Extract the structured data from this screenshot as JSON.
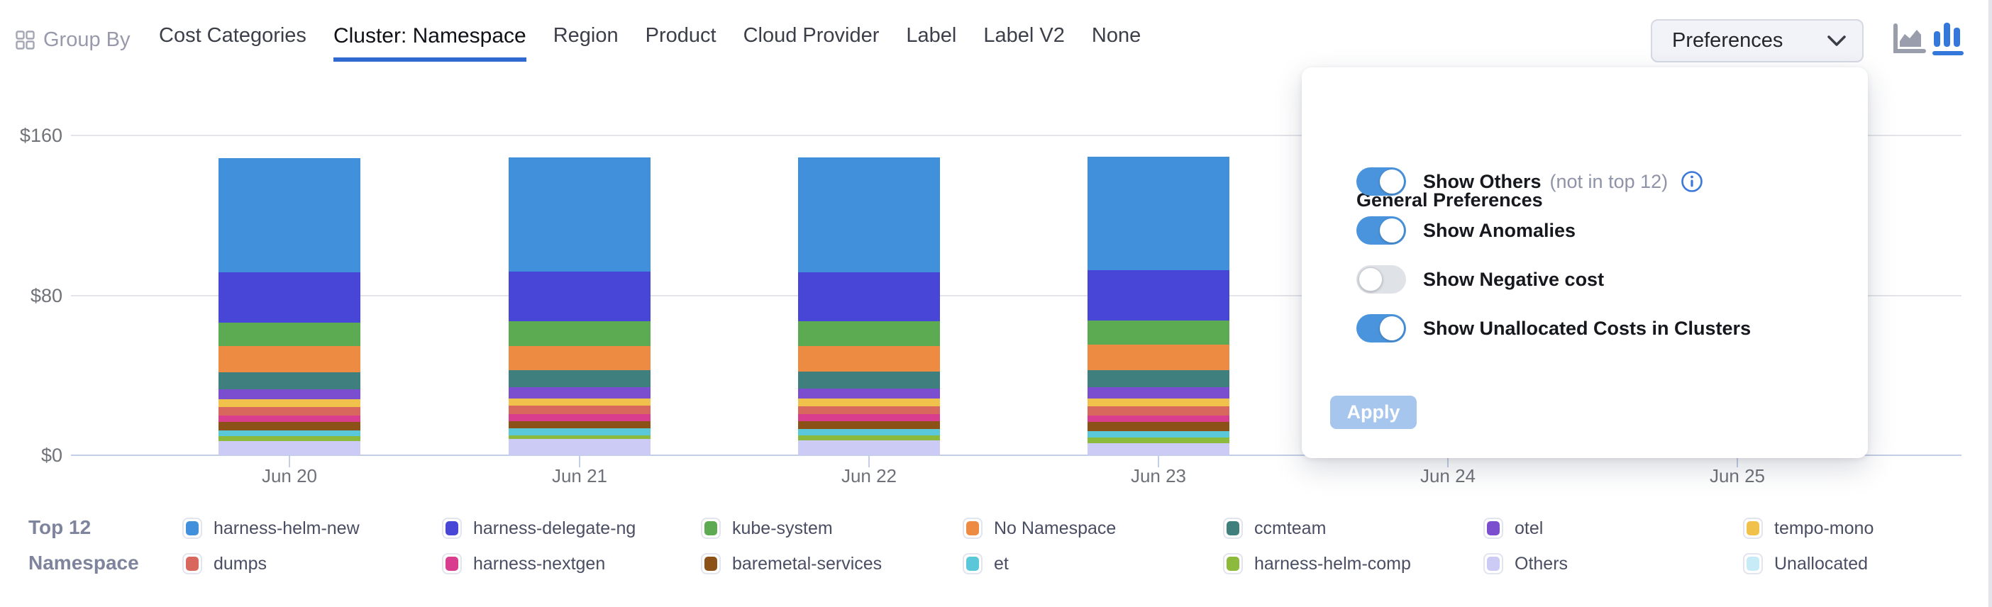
{
  "colors": {
    "accent": "#3069d0",
    "toggle_on": "#4a94dd",
    "toggle_off": "#dfe2e7",
    "apply_bg": "#a6c6ee",
    "info": "#3b78dc",
    "axis_line": "#c3cfe6",
    "gridline": "#e4e4e9",
    "icon_gray": "#9a9dac",
    "icon_blue": "#3578db"
  },
  "header": {
    "group_by_label": "Group By",
    "group_by_icon": "grid-icon",
    "tabs": [
      {
        "label": "Cost Categories",
        "active": false
      },
      {
        "label": "Cluster: Namespace",
        "active": true
      },
      {
        "label": "Region",
        "active": false
      },
      {
        "label": "Product",
        "active": false
      },
      {
        "label": "Cloud Provider",
        "active": false
      },
      {
        "label": "Label",
        "active": false
      },
      {
        "label": "Label V2",
        "active": false
      },
      {
        "label": "None",
        "active": false
      }
    ],
    "preferences_label": "Preferences",
    "preferences_icon": "chevron-down-icon",
    "chart_type_icons": [
      {
        "name": "area-chart-icon",
        "selected": false
      },
      {
        "name": "bar-chart-icon",
        "selected": true
      }
    ]
  },
  "preferences_panel": {
    "title": "General Preferences",
    "options": [
      {
        "label": "Show Others",
        "suffix": "(not in top 12)",
        "info_icon": true,
        "enabled": true
      },
      {
        "label": "Show Anomalies",
        "suffix": "",
        "info_icon": false,
        "enabled": true
      },
      {
        "label": "Show Negative cost",
        "suffix": "",
        "info_icon": false,
        "enabled": false
      },
      {
        "label": "Show Unallocated Costs in Clusters",
        "suffix": "",
        "info_icon": false,
        "enabled": true
      }
    ],
    "apply_label": "Apply"
  },
  "legend": {
    "title_line1": "Top 12",
    "title_line2": "Namespace"
  },
  "chart_data": {
    "type": "bar",
    "stacked": true,
    "grid": "horizontal",
    "legend_position": "bottom",
    "currency": "$",
    "categories": [
      "Jun 20",
      "Jun 21",
      "Jun 22",
      "Jun 23",
      "Jun 24",
      "Jun 25"
    ],
    "y_tick_values": [
      0,
      80,
      160
    ],
    "y_tick_labels": [
      "$0",
      "$80",
      "$160"
    ],
    "ylim": [
      0,
      160
    ],
    "note": "Jun 24 and Jun 25 columns are hidden behind the open preferences popover; daily stacks total ~$149",
    "series": [
      {
        "name": "harness-helm-new",
        "color": "#4190db",
        "values": [
          57,
          57,
          57.5,
          57,
          null,
          null
        ]
      },
      {
        "name": "harness-delegate-ng",
        "color": "#4846d6",
        "values": [
          25,
          25,
          24.5,
          25,
          null,
          null
        ]
      },
      {
        "name": "kube-system",
        "color": "#5caa52",
        "values": [
          12,
          12.5,
          12.5,
          12,
          null,
          null
        ]
      },
      {
        "name": "No Namespace",
        "color": "#ee8b42",
        "values": [
          13,
          12,
          12.5,
          13,
          null,
          null
        ]
      },
      {
        "name": "ccmteam",
        "color": "#3f7f7e",
        "values": [
          8.5,
          8.5,
          8.5,
          8.5,
          null,
          null
        ]
      },
      {
        "name": "otel",
        "color": "#7a4ecf",
        "values": [
          5,
          5.5,
          5,
          5.5,
          null,
          null
        ]
      },
      {
        "name": "tempo-mono",
        "color": "#f0c24c",
        "values": [
          4,
          3.5,
          4,
          4,
          null,
          null
        ]
      },
      {
        "name": "dumps",
        "color": "#d8685e",
        "values": [
          4,
          4.5,
          4,
          4.5,
          null,
          null
        ]
      },
      {
        "name": "harness-nextgen",
        "color": "#d93d8d",
        "values": [
          3.5,
          3.5,
          3.5,
          3.5,
          null,
          null
        ]
      },
      {
        "name": "baremetal-services",
        "color": "#8b5116",
        "values": [
          4,
          3.5,
          4,
          4.5,
          null,
          null
        ]
      },
      {
        "name": "et",
        "color": "#5ac8d8",
        "values": [
          3,
          3.5,
          3,
          3,
          null,
          null
        ]
      },
      {
        "name": "harness-helm-comp",
        "color": "#8cba3c",
        "values": [
          2.5,
          2,
          2.5,
          3,
          null,
          null
        ]
      },
      {
        "name": "Others",
        "color": "#cbcbf5",
        "values": [
          7,
          8,
          7.5,
          6,
          null,
          null
        ]
      },
      {
        "name": "Unallocated",
        "color": "#c8ecf7",
        "values": [
          0,
          0,
          0,
          0,
          null,
          null
        ]
      }
    ]
  }
}
